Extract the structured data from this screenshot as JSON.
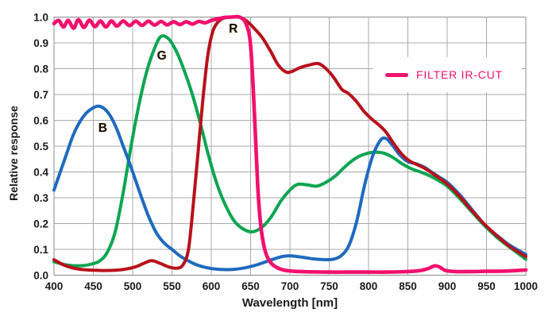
{
  "colors": {
    "background": "#FFFFFF",
    "grid": "#A8A8A8",
    "plot_border": "#8C8C8C",
    "text": "#1A1A1A",
    "blue": "#1E6ABF",
    "green": "#0CA551",
    "red": "#B8111A",
    "filter_pink": "#F2106E"
  },
  "chart_data": {
    "type": "line",
    "title": "",
    "xlabel": "Wavelength [nm]",
    "ylabel": "Relative response",
    "xlim": [
      400,
      1000
    ],
    "ylim": [
      0.0,
      1.0
    ],
    "grid": true,
    "x_ticks": [
      400,
      450,
      500,
      550,
      600,
      650,
      700,
      750,
      800,
      850,
      900,
      950,
      1000
    ],
    "y_ticks": [
      0.0,
      0.1,
      0.2,
      0.3,
      0.4,
      0.5,
      0.6,
      0.7,
      0.8,
      0.9,
      1.0
    ],
    "legend": {
      "position": "upper right",
      "entries": [
        {
          "label": "FILTER IR-CUT",
          "color": "#F2106E"
        }
      ]
    },
    "curve_labels": [
      {
        "text": "B",
        "x": 462,
        "y": 0.555
      },
      {
        "text": "G",
        "x": 537,
        "y": 0.835
      },
      {
        "text": "R",
        "x": 628,
        "y": 0.94
      }
    ],
    "series": [
      {
        "name": "G",
        "color": "#0CA551",
        "width": 4,
        "points": [
          [
            400,
            0.052
          ],
          [
            412,
            0.042
          ],
          [
            424,
            0.037
          ],
          [
            436,
            0.037
          ],
          [
            448,
            0.043
          ],
          [
            458,
            0.055
          ],
          [
            468,
            0.09
          ],
          [
            478,
            0.17
          ],
          [
            488,
            0.32
          ],
          [
            498,
            0.5
          ],
          [
            508,
            0.66
          ],
          [
            518,
            0.79
          ],
          [
            528,
            0.88
          ],
          [
            536,
            0.925
          ],
          [
            546,
            0.915
          ],
          [
            556,
            0.865
          ],
          [
            566,
            0.79
          ],
          [
            576,
            0.7
          ],
          [
            586,
            0.59
          ],
          [
            596,
            0.47
          ],
          [
            606,
            0.365
          ],
          [
            616,
            0.285
          ],
          [
            628,
            0.215
          ],
          [
            640,
            0.18
          ],
          [
            652,
            0.168
          ],
          [
            664,
            0.185
          ],
          [
            676,
            0.225
          ],
          [
            688,
            0.285
          ],
          [
            700,
            0.33
          ],
          [
            710,
            0.352
          ],
          [
            722,
            0.35
          ],
          [
            734,
            0.345
          ],
          [
            746,
            0.36
          ],
          [
            758,
            0.385
          ],
          [
            770,
            0.42
          ],
          [
            782,
            0.45
          ],
          [
            794,
            0.468
          ],
          [
            806,
            0.476
          ],
          [
            818,
            0.474
          ],
          [
            830,
            0.458
          ],
          [
            842,
            0.433
          ],
          [
            854,
            0.413
          ],
          [
            866,
            0.4
          ],
          [
            878,
            0.385
          ],
          [
            890,
            0.365
          ],
          [
            900,
            0.345
          ],
          [
            915,
            0.3
          ],
          [
            930,
            0.25
          ],
          [
            945,
            0.2
          ],
          [
            955,
            0.17
          ],
          [
            965,
            0.142
          ],
          [
            980,
            0.107
          ],
          [
            1000,
            0.062
          ]
        ]
      },
      {
        "name": "B",
        "color": "#1E6ABF",
        "width": 4,
        "points": [
          [
            400,
            0.33
          ],
          [
            408,
            0.4
          ],
          [
            416,
            0.47
          ],
          [
            424,
            0.54
          ],
          [
            432,
            0.59
          ],
          [
            440,
            0.625
          ],
          [
            448,
            0.645
          ],
          [
            456,
            0.655
          ],
          [
            464,
            0.645
          ],
          [
            472,
            0.615
          ],
          [
            480,
            0.565
          ],
          [
            488,
            0.5
          ],
          [
            496,
            0.435
          ],
          [
            504,
            0.365
          ],
          [
            512,
            0.295
          ],
          [
            520,
            0.23
          ],
          [
            530,
            0.165
          ],
          [
            540,
            0.125
          ],
          [
            550,
            0.1
          ],
          [
            560,
            0.075
          ],
          [
            570,
            0.057
          ],
          [
            580,
            0.042
          ],
          [
            590,
            0.032
          ],
          [
            600,
            0.026
          ],
          [
            615,
            0.022
          ],
          [
            630,
            0.023
          ],
          [
            645,
            0.03
          ],
          [
            660,
            0.042
          ],
          [
            675,
            0.058
          ],
          [
            690,
            0.072
          ],
          [
            700,
            0.075
          ],
          [
            715,
            0.07
          ],
          [
            730,
            0.063
          ],
          [
            745,
            0.06
          ],
          [
            755,
            0.062
          ],
          [
            765,
            0.075
          ],
          [
            775,
            0.115
          ],
          [
            785,
            0.21
          ],
          [
            795,
            0.35
          ],
          [
            805,
            0.46
          ],
          [
            815,
            0.522
          ],
          [
            822,
            0.53
          ],
          [
            830,
            0.505
          ],
          [
            840,
            0.465
          ],
          [
            850,
            0.44
          ],
          [
            860,
            0.432
          ],
          [
            870,
            0.42
          ],
          [
            880,
            0.4
          ],
          [
            890,
            0.38
          ],
          [
            900,
            0.36
          ],
          [
            915,
            0.315
          ],
          [
            930,
            0.26
          ],
          [
            945,
            0.205
          ],
          [
            955,
            0.175
          ],
          [
            965,
            0.15
          ],
          [
            980,
            0.115
          ],
          [
            1000,
            0.08
          ]
        ]
      },
      {
        "name": "R",
        "color": "#B8111A",
        "width": 4,
        "points": [
          [
            400,
            0.06
          ],
          [
            412,
            0.04
          ],
          [
            424,
            0.028
          ],
          [
            436,
            0.022
          ],
          [
            450,
            0.019
          ],
          [
            464,
            0.018
          ],
          [
            478,
            0.019
          ],
          [
            492,
            0.024
          ],
          [
            504,
            0.033
          ],
          [
            514,
            0.046
          ],
          [
            524,
            0.056
          ],
          [
            534,
            0.047
          ],
          [
            546,
            0.032
          ],
          [
            556,
            0.027
          ],
          [
            564,
            0.04
          ],
          [
            571,
            0.1
          ],
          [
            577,
            0.27
          ],
          [
            583,
            0.47
          ],
          [
            589,
            0.67
          ],
          [
            595,
            0.84
          ],
          [
            601,
            0.935
          ],
          [
            607,
            0.975
          ],
          [
            615,
            0.995
          ],
          [
            625,
            1.0
          ],
          [
            635,
            1.0
          ],
          [
            645,
            0.985
          ],
          [
            655,
            0.955
          ],
          [
            665,
            0.92
          ],
          [
            675,
            0.87
          ],
          [
            685,
            0.815
          ],
          [
            695,
            0.787
          ],
          [
            703,
            0.79
          ],
          [
            712,
            0.803
          ],
          [
            724,
            0.814
          ],
          [
            736,
            0.82
          ],
          [
            746,
            0.8
          ],
          [
            756,
            0.765
          ],
          [
            766,
            0.72
          ],
          [
            774,
            0.705
          ],
          [
            784,
            0.675
          ],
          [
            794,
            0.635
          ],
          [
            804,
            0.605
          ],
          [
            812,
            0.585
          ],
          [
            822,
            0.555
          ],
          [
            832,
            0.51
          ],
          [
            842,
            0.47
          ],
          [
            852,
            0.443
          ],
          [
            862,
            0.428
          ],
          [
            872,
            0.413
          ],
          [
            882,
            0.393
          ],
          [
            892,
            0.372
          ],
          [
            902,
            0.348
          ],
          [
            916,
            0.305
          ],
          [
            930,
            0.255
          ],
          [
            945,
            0.205
          ],
          [
            955,
            0.175
          ],
          [
            965,
            0.148
          ],
          [
            980,
            0.11
          ],
          [
            1000,
            0.072
          ]
        ]
      },
      {
        "name": "FILTER IR-CUT",
        "color": "#F2106E",
        "width": 4.6,
        "points": [
          [
            400,
            0.975
          ],
          [
            406,
            0.987
          ],
          [
            412,
            0.962
          ],
          [
            418,
            0.987
          ],
          [
            425,
            0.957
          ],
          [
            431,
            0.99
          ],
          [
            438,
            0.96
          ],
          [
            445,
            0.988
          ],
          [
            452,
            0.963
          ],
          [
            459,
            0.985
          ],
          [
            466,
            0.962
          ],
          [
            473,
            0.985
          ],
          [
            480,
            0.965
          ],
          [
            488,
            0.985
          ],
          [
            496,
            0.967
          ],
          [
            504,
            0.984
          ],
          [
            512,
            0.968
          ],
          [
            520,
            0.984
          ],
          [
            528,
            0.969
          ],
          [
            536,
            0.983
          ],
          [
            544,
            0.97
          ],
          [
            552,
            0.982
          ],
          [
            560,
            0.971
          ],
          [
            568,
            0.982
          ],
          [
            576,
            0.973
          ],
          [
            584,
            0.983
          ],
          [
            592,
            0.978
          ],
          [
            600,
            0.987
          ],
          [
            608,
            0.993
          ],
          [
            616,
            0.998
          ],
          [
            626,
            1.0
          ],
          [
            636,
            1.0
          ],
          [
            644,
            0.975
          ],
          [
            650,
            0.89
          ],
          [
            655,
            0.62
          ],
          [
            659,
            0.35
          ],
          [
            663,
            0.19
          ],
          [
            668,
            0.1
          ],
          [
            674,
            0.055
          ],
          [
            682,
            0.032
          ],
          [
            692,
            0.02
          ],
          [
            705,
            0.015
          ],
          [
            725,
            0.013
          ],
          [
            750,
            0.012
          ],
          [
            775,
            0.012
          ],
          [
            800,
            0.012
          ],
          [
            825,
            0.012
          ],
          [
            850,
            0.014
          ],
          [
            866,
            0.018
          ],
          [
            876,
            0.026
          ],
          [
            884,
            0.036
          ],
          [
            890,
            0.032
          ],
          [
            898,
            0.018
          ],
          [
            910,
            0.014
          ],
          [
            930,
            0.014
          ],
          [
            950,
            0.015
          ],
          [
            975,
            0.016
          ],
          [
            1000,
            0.02
          ]
        ]
      }
    ]
  }
}
